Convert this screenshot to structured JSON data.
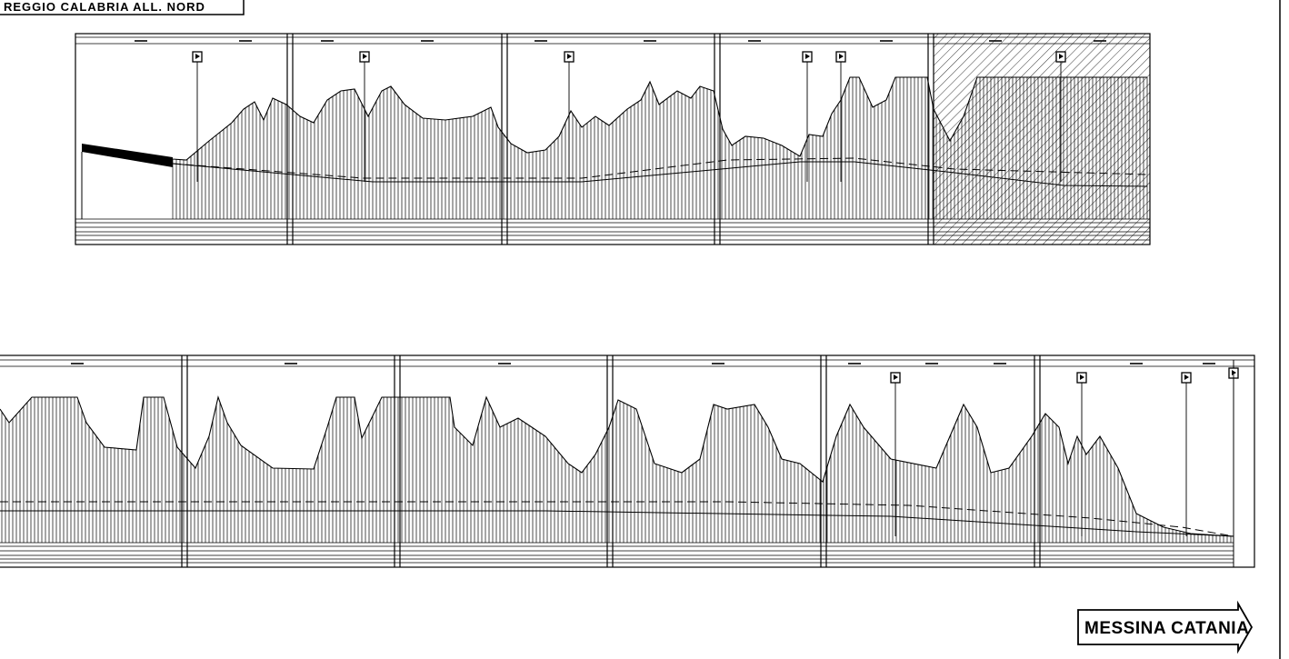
{
  "labels": {
    "origin": "REGGIO CALABRIA ALL. NORD",
    "destination": "MESSINA CATANIA"
  },
  "colors": {
    "ink": "#000000",
    "paper": "#ffffff"
  },
  "icons": {
    "station_marker": "boxed-flag-marker",
    "direction_arrow": "right-arrow-banner"
  }
}
